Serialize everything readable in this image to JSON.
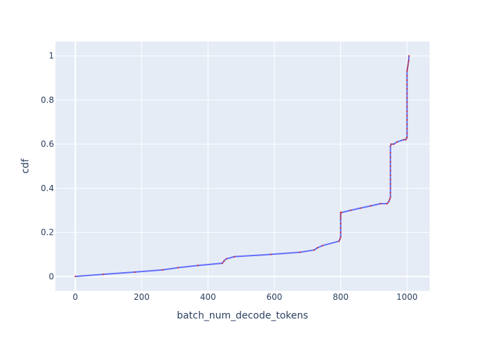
{
  "chart_data": {
    "type": "line",
    "title": "",
    "xlabel": "batch_num_decode_tokens",
    "ylabel": "cdf",
    "xlim": [
      -60,
      1068
    ],
    "ylim": [
      -0.065,
      1.065
    ],
    "x_ticks": [
      0,
      200,
      400,
      600,
      800,
      1000
    ],
    "x_tick_labels": [
      "0",
      "200",
      "400",
      "600",
      "800",
      "1000"
    ],
    "y_ticks": [
      0,
      0.2,
      0.4,
      0.6,
      0.8,
      1
    ],
    "y_tick_labels": [
      "0",
      "0.2",
      "0.4",
      "0.6",
      "0.8",
      "1"
    ],
    "grid": true,
    "colors": {
      "plot_bg": "#e5ecf6",
      "grid": "#ffffff",
      "line": "#636efa",
      "marker": "#d62728",
      "text": "#2a3f5f"
    },
    "series": [
      {
        "x": [
          0,
          85,
          180,
          263,
          310,
          370,
          443,
          448,
          455,
          480,
          590,
          678,
          720,
          730,
          745,
          795,
          798,
          800,
          800,
          800,
          800,
          800,
          800,
          800,
          800,
          803,
          830,
          860,
          890,
          920,
          940,
          945,
          948,
          950,
          950,
          950,
          950,
          950,
          950,
          950,
          950,
          950,
          950,
          950,
          950,
          952,
          960,
          970,
          990,
          997,
          999,
          1000,
          1000,
          1000,
          1000,
          1000,
          1000,
          1000,
          1000,
          1000,
          1000,
          1000,
          1000,
          1000,
          1000,
          1000,
          1000,
          1001,
          1002,
          1003,
          1004,
          1005,
          1006
        ],
        "y": [
          0.0,
          0.01,
          0.02,
          0.03,
          0.04,
          0.05,
          0.06,
          0.07,
          0.08,
          0.09,
          0.1,
          0.11,
          0.12,
          0.13,
          0.14,
          0.16,
          0.17,
          0.18,
          0.2,
          0.22,
          0.24,
          0.26,
          0.27,
          0.28,
          0.29,
          0.29,
          0.3,
          0.31,
          0.32,
          0.33,
          0.33,
          0.34,
          0.35,
          0.36,
          0.38,
          0.4,
          0.42,
          0.44,
          0.46,
          0.48,
          0.5,
          0.52,
          0.54,
          0.56,
          0.59,
          0.6,
          0.6,
          0.61,
          0.62,
          0.62,
          0.63,
          0.63,
          0.65,
          0.67,
          0.69,
          0.71,
          0.73,
          0.75,
          0.77,
          0.79,
          0.81,
          0.83,
          0.85,
          0.87,
          0.89,
          0.91,
          0.93,
          0.94,
          0.95,
          0.96,
          0.97,
          0.98,
          1.0
        ]
      }
    ]
  }
}
